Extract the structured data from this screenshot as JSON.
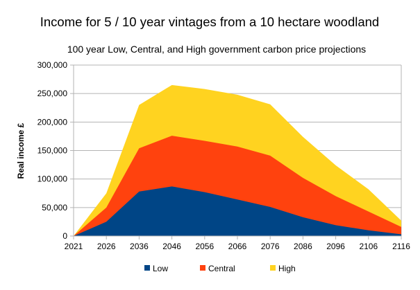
{
  "chart_data": {
    "type": "area",
    "title": "Income for 5 / 10 year vintages from a 10 hectare woodland",
    "subtitle": "100 year Low, Central, and High government carbon price projections",
    "xlabel": "",
    "ylabel": "Real income £",
    "ylim": [
      0,
      300000
    ],
    "yticks": [
      "0",
      "50,000",
      "100,000",
      "150,000",
      "200,000",
      "250,000",
      "300,000"
    ],
    "grid": true,
    "legend": "bottom",
    "categories": [
      "2021",
      "2026",
      "2036",
      "2046",
      "2056",
      "2066",
      "2076",
      "2086",
      "2096",
      "2106",
      "2116"
    ],
    "series": [
      {
        "name": "Low",
        "color": "#004586",
        "values": [
          0,
          25000,
          78000,
          87000,
          77000,
          64000,
          51000,
          33000,
          19000,
          10000,
          3000
        ]
      },
      {
        "name": "Central",
        "color": "#ff420e",
        "values": [
          0,
          50000,
          154000,
          176000,
          167000,
          157000,
          141000,
          102000,
          70000,
          43000,
          16000
        ]
      },
      {
        "name": "High",
        "color": "#ffd320",
        "values": [
          0,
          75000,
          230000,
          265000,
          258000,
          248000,
          231000,
          174000,
          124000,
          82000,
          27000
        ]
      }
    ]
  }
}
